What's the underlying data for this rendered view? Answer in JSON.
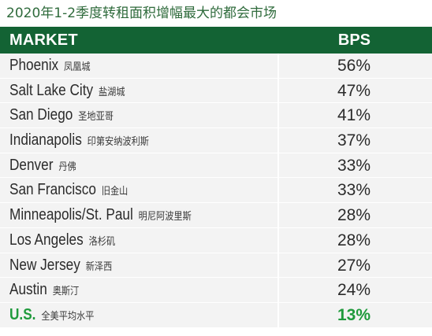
{
  "title": "2020年1-2季度转租面积增幅最大的都会市场",
  "chart_data": {
    "type": "table",
    "columns": [
      "MARKET",
      "BPS"
    ],
    "rows": [
      {
        "market": "Phoenix",
        "market_cn": "凤凰城",
        "bps": "56%"
      },
      {
        "market": "Salt Lake City",
        "market_cn": "盐湖城",
        "bps": "47%"
      },
      {
        "market": "San Diego",
        "market_cn": "圣地亚哥",
        "bps": "41%"
      },
      {
        "market": "Indianapolis",
        "market_cn": "印第安纳波利斯",
        "bps": "37%"
      },
      {
        "market": "Denver",
        "market_cn": "丹佛",
        "bps": "33%"
      },
      {
        "market": "San Francisco",
        "market_cn": "旧金山",
        "bps": "33%"
      },
      {
        "market": "Minneapolis/St. Paul",
        "market_cn": "明尼阿波里斯",
        "bps": "28%"
      },
      {
        "market": "Los Angeles",
        "market_cn": "洛杉矶",
        "bps": "28%"
      },
      {
        "market": "New Jersey",
        "market_cn": "新泽西",
        "bps": "27%"
      },
      {
        "market": "Austin",
        "market_cn": "奥斯汀",
        "bps": "24%"
      },
      {
        "market": "U.S.",
        "market_cn": "全美平均水平",
        "bps": "13%",
        "highlight": true
      }
    ]
  },
  "colors": {
    "header_bg": "#136334",
    "row_bg": "#f3f3f3",
    "title": "#2f6b3c",
    "highlight": "#1f9a3c"
  }
}
